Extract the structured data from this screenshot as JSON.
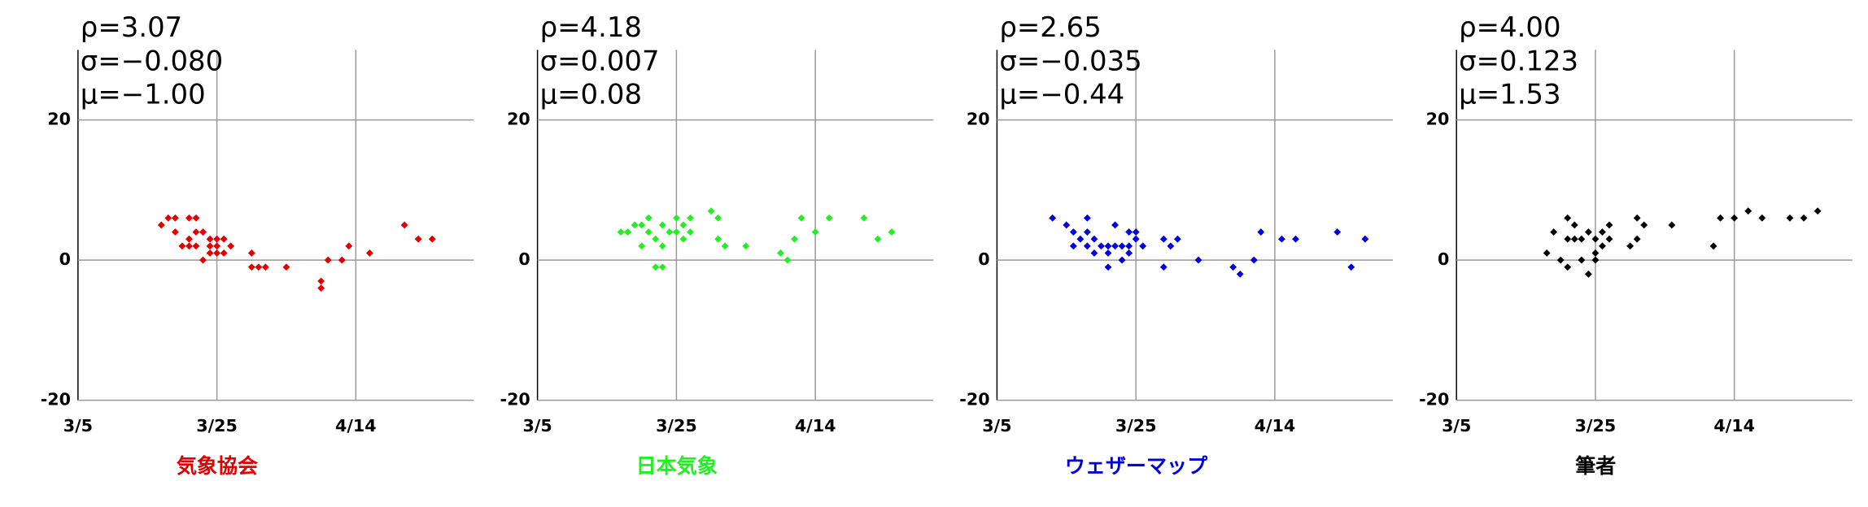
{
  "chart_data": [
    {
      "type": "scatter",
      "title": "気象協会",
      "color": "#e00000",
      "annotations": [
        "ρ=3.07",
        "σ=−0.080",
        "μ=−1.00"
      ],
      "x": [
        "3/17",
        "3/18",
        "3/19",
        "3/19",
        "3/20",
        "3/21",
        "3/21",
        "3/21",
        "3/22",
        "3/22",
        "3/22",
        "3/23",
        "3/23",
        "3/24",
        "3/24",
        "3/24",
        "3/25",
        "3/25",
        "3/25",
        "3/26",
        "3/26",
        "3/27",
        "3/30",
        "3/30",
        "3/31",
        "4/1",
        "4/4",
        "4/9",
        "4/9",
        "4/10",
        "4/12",
        "4/13",
        "4/16",
        "4/21",
        "4/23",
        "4/25"
      ],
      "values": [
        5,
        6,
        6,
        4,
        2,
        6,
        3,
        2,
        6,
        4,
        2,
        0,
        4,
        2,
        1,
        3,
        3,
        1,
        2,
        3,
        1,
        2,
        1,
        -1,
        -1,
        -1,
        -1,
        -3,
        -4,
        0,
        0,
        2,
        1,
        5,
        3,
        3
      ],
      "xlim": [
        "3/5",
        "5/1"
      ],
      "xticks": [
        "3/5",
        "3/25",
        "4/14"
      ],
      "ylim": [
        -20,
        30
      ],
      "yticks": [
        -20,
        0,
        20
      ]
    },
    {
      "type": "scatter",
      "title": "日本気象",
      "color": "#22ee22",
      "annotations": [
        "ρ=4.18",
        "σ=0.007",
        "μ=0.08"
      ],
      "x": [
        "3/17",
        "3/18",
        "3/19",
        "3/20",
        "3/20",
        "3/21",
        "3/21",
        "3/22",
        "3/22",
        "3/23",
        "3/23",
        "3/23",
        "3/24",
        "3/25",
        "3/25",
        "3/26",
        "3/26",
        "3/27",
        "3/27",
        "3/30",
        "3/31",
        "3/31",
        "4/1",
        "4/4",
        "4/9",
        "4/10",
        "4/11",
        "4/12",
        "4/14",
        "4/16",
        "4/21",
        "4/23",
        "4/25"
      ],
      "values": [
        4,
        4,
        5,
        5,
        2,
        6,
        4,
        -1,
        3,
        -1,
        5,
        2,
        4,
        4,
        6,
        5,
        3,
        6,
        4,
        7,
        6,
        3,
        2,
        2,
        1,
        0,
        3,
        6,
        4,
        6,
        6,
        3,
        4
      ],
      "xlim": [
        "3/5",
        "5/1"
      ],
      "xticks": [
        "3/5",
        "3/25",
        "4/14"
      ],
      "ylim": [
        -20,
        30
      ],
      "yticks": [
        -20,
        0,
        20
      ]
    },
    {
      "type": "scatter",
      "title": "ウェザーマップ",
      "color": "#0000dd",
      "annotations": [
        "ρ=2.65",
        "σ=−0.035",
        "μ=−0.44"
      ],
      "x": [
        "3/13",
        "3/15",
        "3/16",
        "3/16",
        "3/17",
        "3/18",
        "3/18",
        "3/18",
        "3/19",
        "3/19",
        "3/20",
        "3/21",
        "3/21",
        "3/21",
        "3/22",
        "3/22",
        "3/23",
        "3/23",
        "3/24",
        "3/24",
        "3/24",
        "3/25",
        "3/25",
        "3/26",
        "3/29",
        "3/29",
        "3/30",
        "3/31",
        "4/3",
        "4/8",
        "4/9",
        "4/11",
        "4/12",
        "4/15",
        "4/17",
        "4/23",
        "4/25",
        "4/27"
      ],
      "values": [
        6,
        5,
        4,
        2,
        3,
        6,
        4,
        2,
        1,
        3,
        2,
        -1,
        1,
        2,
        2,
        5,
        0,
        2,
        4,
        1,
        2,
        3,
        4,
        2,
        3,
        -1,
        2,
        3,
        0,
        -1,
        -2,
        0,
        4,
        3,
        3,
        4,
        -1,
        3
      ],
      "xlim": [
        "3/5",
        "5/1"
      ],
      "xticks": [
        "3/5",
        "3/25",
        "4/14"
      ],
      "ylim": [
        -20,
        30
      ],
      "yticks": [
        -20,
        0,
        20
      ]
    },
    {
      "type": "scatter",
      "title": "筆者",
      "color": "#000000",
      "annotations": [
        "ρ=4.00",
        "σ=0.123",
        "μ=1.53"
      ],
      "x": [
        "3/18",
        "3/19",
        "3/20",
        "3/21",
        "3/21",
        "3/21",
        "3/22",
        "3/22",
        "3/23",
        "3/23",
        "3/24",
        "3/24",
        "3/25",
        "3/25",
        "3/25",
        "3/26",
        "3/26",
        "3/27",
        "3/27",
        "3/30",
        "3/31",
        "3/31",
        "4/1",
        "4/5",
        "4/11",
        "4/12",
        "4/14",
        "4/16",
        "4/18",
        "4/22",
        "4/24",
        "4/26"
      ],
      "values": [
        1,
        4,
        0,
        6,
        3,
        -1,
        3,
        5,
        0,
        3,
        -2,
        4,
        3,
        1,
        0,
        4,
        2,
        3,
        5,
        2,
        6,
        3,
        5,
        5,
        2,
        6,
        6,
        7,
        6,
        6,
        6,
        7
      ],
      "xlim": [
        "3/5",
        "5/1"
      ],
      "xticks": [
        "3/5",
        "3/25",
        "4/14"
      ],
      "ylim": [
        -20,
        30
      ],
      "yticks": [
        -20,
        0,
        20
      ]
    }
  ]
}
